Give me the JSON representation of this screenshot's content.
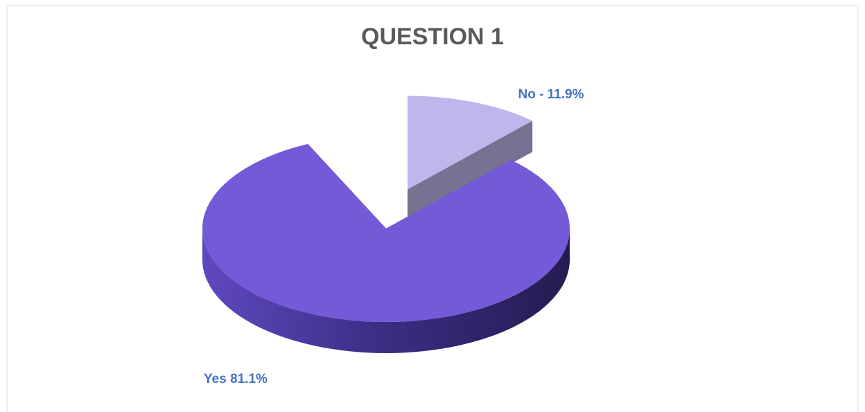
{
  "chart_data": {
    "type": "pie",
    "title": "QUESTION 1",
    "categories": [
      "Yes",
      "No"
    ],
    "values": [
      81.1,
      11.9
    ],
    "value_labels": [
      "Yes 81.1%",
      "No - 11.9%"
    ],
    "colors": [
      "#7459d9",
      "#c0b6ec"
    ]
  }
}
